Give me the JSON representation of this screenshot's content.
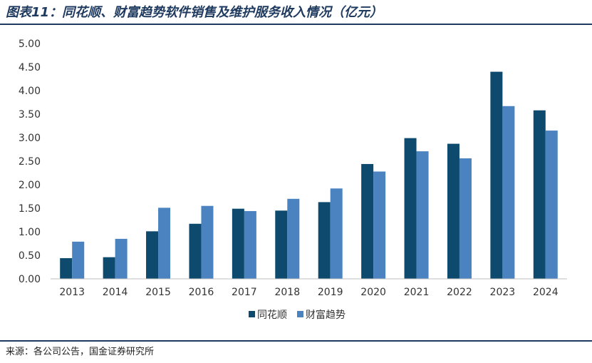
{
  "title": "图表11：同花顺、财富趋势软件销售及维护服务收入情况（亿元）",
  "source": "来源：各公司公告，国金证券研究所",
  "chart_data": {
    "type": "bar",
    "categories": [
      "2013",
      "2014",
      "2015",
      "2016",
      "2017",
      "2018",
      "2019",
      "2020",
      "2021",
      "2022",
      "2023",
      "2024"
    ],
    "series": [
      {
        "name": "同花顺",
        "color": "#0d4a6e",
        "values": [
          0.44,
          0.46,
          1.01,
          1.17,
          1.49,
          1.45,
          1.63,
          2.44,
          2.99,
          2.87,
          4.4,
          3.58
        ]
      },
      {
        "name": "财富趋势",
        "color": "#4a83bf",
        "values": [
          0.79,
          0.85,
          1.51,
          1.55,
          1.44,
          1.7,
          1.92,
          2.28,
          2.71,
          2.56,
          3.67,
          3.15
        ]
      }
    ],
    "yticks": [
      "0.00",
      "0.50",
      "1.00",
      "1.50",
      "2.00",
      "2.50",
      "3.00",
      "3.50",
      "4.00",
      "4.50",
      "5.00"
    ],
    "ylim": [
      0,
      5
    ],
    "grid": false,
    "legend": "bottom-center"
  }
}
